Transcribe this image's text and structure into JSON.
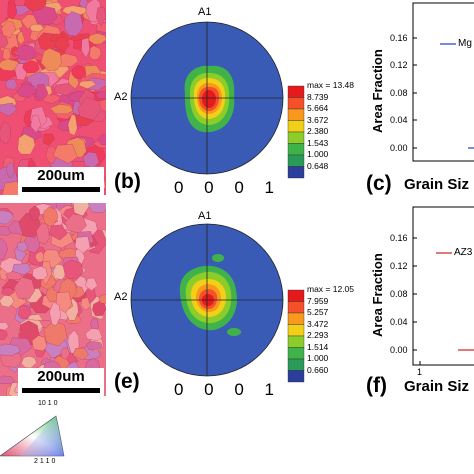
{
  "panels": {
    "b": {
      "label": "(b)",
      "scalebar": "200um",
      "pole_figure": {
        "axis_top": "A1",
        "axis_left": "A2",
        "index": "0 0 0 1",
        "colorbar": [
          "max = 13.48",
          "8.739",
          "5.664",
          "3.672",
          "2.380",
          "1.543",
          "1.000",
          "0.648"
        ]
      }
    },
    "c": {
      "label": "(c)",
      "ylabel": "Area Fraction",
      "xlabel": "Grain Siz",
      "yticks": [
        "0.16",
        "0.12",
        "0.08",
        "0.04",
        "0.00"
      ],
      "legend": "Mg"
    },
    "e": {
      "label": "(e)",
      "scalebar": "200um",
      "pole_figure": {
        "axis_top": "A1",
        "axis_left": "A2",
        "index": "0 0 0 1",
        "colorbar": [
          "max = 12.05",
          "7.959",
          "5.257",
          "3.472",
          "2.293",
          "1.514",
          "1.000",
          "0.660"
        ]
      }
    },
    "f": {
      "label": "(f)",
      "ylabel": "Area Fraction",
      "xlabel": "Grain Siz",
      "yticks": [
        "0.16",
        "0.12",
        "0.08",
        "0.04",
        "0.00"
      ],
      "xtick": "1",
      "legend": "AZ3"
    }
  },
  "ipf_key": {
    "top": "10 1 0",
    "bottom": "2 1 1 0"
  },
  "colors": {
    "pf_background": "#3a5bb5",
    "series_c": "#1f3fbf",
    "series_f": "#d11d1d",
    "colorbar": [
      "#e41a1c",
      "#f4502a",
      "#f8991d",
      "#f2d018",
      "#8ccd2a",
      "#3fb34a",
      "#2a9a59",
      "#2c3e9c"
    ]
  }
}
